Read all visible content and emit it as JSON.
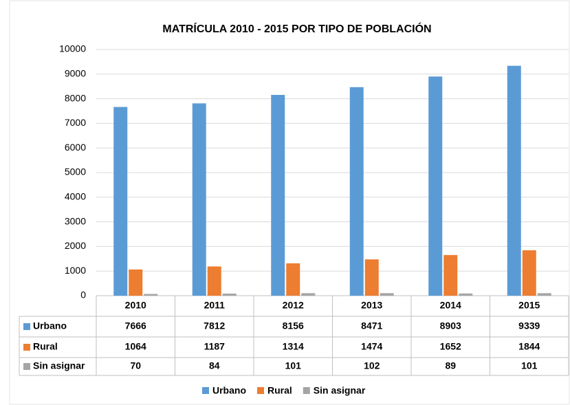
{
  "chart_data": {
    "type": "bar",
    "title": "MATRÍCULA 2010 - 2015 POR TIPO DE POBLACIÓN",
    "categories": [
      "2010",
      "2011",
      "2012",
      "2013",
      "2014",
      "2015"
    ],
    "series": [
      {
        "name": "Urbano",
        "color": "#5b9bd5",
        "values": [
          7666,
          7812,
          8156,
          8471,
          8903,
          9339
        ]
      },
      {
        "name": "Rural",
        "color": "#ed7d31",
        "values": [
          1064,
          1187,
          1314,
          1474,
          1652,
          1844
        ]
      },
      {
        "name": "Sin asignar",
        "color": "#a5a5a5",
        "values": [
          70,
          84,
          101,
          102,
          89,
          101
        ]
      }
    ],
    "ylim": [
      0,
      10000
    ],
    "yticks": [
      0,
      1000,
      2000,
      3000,
      4000,
      5000,
      6000,
      7000,
      8000,
      9000,
      10000
    ],
    "grid": true
  }
}
